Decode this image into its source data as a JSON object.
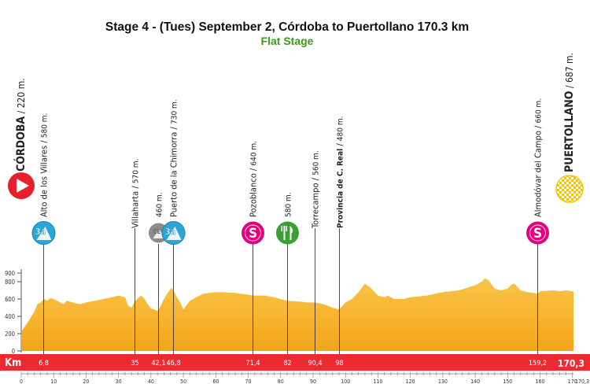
{
  "chart_data": {
    "type": "area",
    "title": "Stage 4 - (Tues) September 2, Córdoba to Puertollano 170.3 km",
    "subtitle": "Flat Stage",
    "xlabel": "Km",
    "ylabel": "",
    "xlim": [
      0,
      170.3
    ],
    "ylim": [
      0,
      1000
    ],
    "y_ticks": [
      0,
      200,
      400,
      600,
      800,
      900
    ],
    "x_ticks": [
      0,
      10,
      20,
      30,
      40,
      50,
      60,
      70,
      80,
      90,
      100,
      110,
      120,
      130,
      140,
      150,
      160,
      170
    ],
    "x_tick_labels": [
      "0",
      "10",
      "20",
      "30",
      "40",
      "50",
      "60",
      "70",
      "80",
      "90",
      "100",
      "110",
      "120",
      "130",
      "140",
      "150",
      "160",
      "170"
    ],
    "x_end_tick_label": "170,3",
    "series": [
      {
        "x": [
          0,
          2,
          4,
          5,
          6,
          7,
          8,
          9,
          10,
          12,
          13,
          14,
          16,
          18,
          20,
          24,
          28,
          30,
          32,
          33,
          34,
          35,
          36,
          37,
          38,
          39,
          40,
          41,
          42.1,
          43,
          44,
          45,
          46.3,
          47,
          48,
          49,
          50,
          52,
          54,
          56,
          58,
          60,
          62,
          66,
          70,
          71.4,
          75,
          78,
          82,
          86,
          88,
          90.4,
          92,
          94,
          96,
          98,
          100,
          102,
          104,
          105,
          106,
          108,
          110,
          112,
          113,
          115,
          118,
          120,
          125,
          130,
          135,
          140,
          142,
          143,
          144,
          146,
          148,
          150,
          151,
          152,
          154,
          156,
          158,
          159.2,
          160,
          164,
          166,
          168,
          170.3
        ],
        "y": [
          220,
          330,
          450,
          540,
          560,
          600,
          580,
          610,
          600,
          560,
          540,
          580,
          560,
          540,
          560,
          590,
          620,
          640,
          620,
          520,
          500,
          570,
          610,
          640,
          600,
          540,
          490,
          480,
          460,
          520,
          600,
          660,
          730,
          700,
          620,
          560,
          480,
          580,
          620,
          660,
          670,
          680,
          680,
          670,
          650,
          640,
          640,
          620,
          580,
          570,
          560,
          560,
          550,
          530,
          500,
          480,
          560,
          600,
          680,
          730,
          780,
          720,
          640,
          620,
          640,
          600,
          600,
          620,
          640,
          680,
          700,
          760,
          800,
          840,
          820,
          720,
          700,
          720,
          760,
          780,
          700,
          680,
          670,
          660,
          690,
          700,
          690,
          700,
          687
        ]
      }
    ],
    "start": {
      "name": "CÓRDOBA",
      "altitude": "220 m."
    },
    "finish": {
      "name": "PUERTOLLANO",
      "altitude": "687 m.",
      "km": "170,3"
    },
    "points": [
      {
        "km": 6.8,
        "km_label": "6,8",
        "name": "Alto de los Villares",
        "altitude": "580 m.",
        "icon": "mountain-3rd-cat-icon",
        "badge": "3a"
      },
      {
        "km": 35,
        "km_label": "35",
        "name": "Villaharta",
        "altitude": "570 m.",
        "icon": ""
      },
      {
        "km": 42.1,
        "km_label": "42,1",
        "name": "",
        "altitude": "460 m.",
        "icon": "special-sprint-icon",
        "badge": "CE"
      },
      {
        "km": 46.8,
        "km_label": "46,8",
        "name": "Puerto de la Chimorra",
        "altitude": "730 m.",
        "icon": "mountain-3rd-cat-icon",
        "badge": "3a"
      },
      {
        "km": 71.4,
        "km_label": "71,4",
        "name": "Pozoblanco",
        "altitude": "640 m.",
        "icon": "sprint-icon",
        "badge": "S"
      },
      {
        "km": 82,
        "km_label": "82",
        "name": "",
        "altitude": "580 m.",
        "icon": "feed-zone-icon"
      },
      {
        "km": 90.4,
        "km_label": "90,4",
        "name": "Torrecampo",
        "altitude": "560 m.",
        "icon": ""
      },
      {
        "km": 98,
        "km_label": "98",
        "name": "Provincia de C. Real",
        "altitude": "480 m.",
        "icon": "",
        "bold": true
      },
      {
        "km": 159.2,
        "km_label": "159,2",
        "name": "Almodóvar del Campo",
        "altitude": "660 m.",
        "icon": "sprint-icon",
        "badge": "S"
      }
    ],
    "colors": {
      "fill": "#f7b01f",
      "fill_top": "#f9c448",
      "bar": "#ec2a2f",
      "mountain": "#2aa7d8",
      "sprint": "#e4007c",
      "feed": "#3aa032",
      "special": "#8c8c8c",
      "start": "#e5202a",
      "finish_a": "#f4c20d",
      "finish_b": "#ffffff"
    }
  }
}
